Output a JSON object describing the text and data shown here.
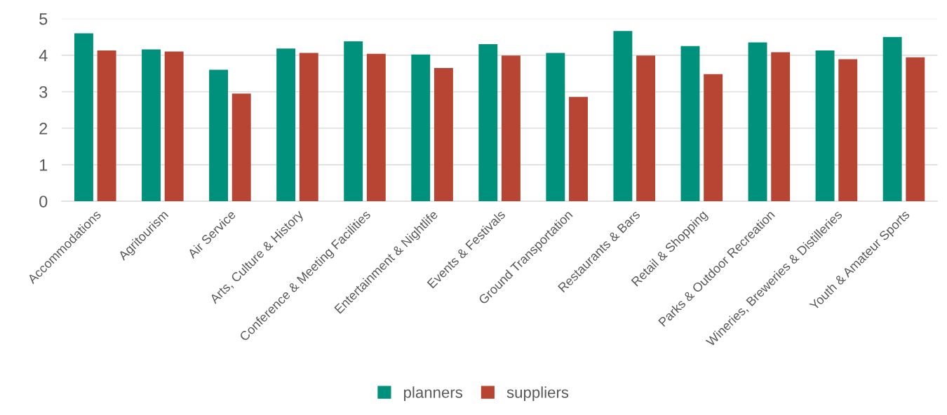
{
  "chart_data": {
    "type": "bar",
    "categories": [
      "Accommodations",
      "Agritourism",
      "Air Service",
      "Arts, Culture & History",
      "Conference & Meeting Facilities",
      "Entertainment & Nightlife",
      "Events & Festivals",
      "Ground Transportation",
      "Restaurants & Bars",
      "Retail & Shopping",
      "Parks & Outdoor Recreation",
      "Wineries, Breweries & Distilleries",
      "Youth & Amateur Sports"
    ],
    "series": [
      {
        "name": "planners",
        "color": "#00917c",
        "values": [
          4.6,
          4.16,
          3.6,
          4.18,
          4.38,
          4.02,
          4.3,
          4.06,
          4.66,
          4.25,
          4.35,
          4.13,
          4.5
        ]
      },
      {
        "name": "suppliers",
        "color": "#b84433",
        "values": [
          4.13,
          4.1,
          2.95,
          4.06,
          4.04,
          3.65,
          3.99,
          2.86,
          3.99,
          3.48,
          4.08,
          3.89,
          3.94
        ]
      }
    ],
    "ylim": [
      0,
      5
    ],
    "yticks": [
      0,
      1,
      2,
      3,
      4,
      5
    ],
    "grid": "y",
    "legend": "bottom"
  }
}
